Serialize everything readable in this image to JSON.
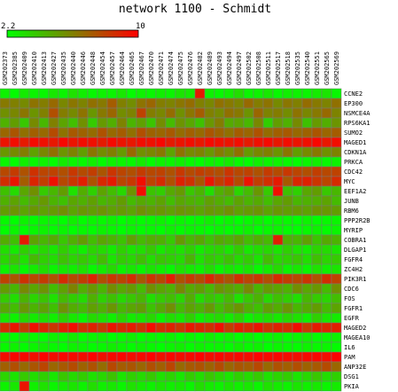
{
  "chart_data": {
    "type": "heatmap",
    "title": "network 1100 - Schmidt",
    "color_scale": {
      "min": 2.2,
      "max": 10,
      "min_label": "2.2",
      "max_label": "10",
      "low_color": "#00ff00",
      "mid_color": "#808000",
      "high_color": "#ff0000"
    },
    "columns": [
      "GSM202373",
      "GSM202385",
      "GSM202409",
      "GSM202410",
      "GSM202413",
      "GSM202427",
      "GSM202435",
      "GSM202440",
      "GSM202446",
      "GSM202448",
      "GSM202454",
      "GSM202457",
      "GSM202464",
      "GSM202465",
      "GSM202467",
      "GSM202470",
      "GSM202471",
      "GSM202474",
      "GSM202475",
      "GSM202476",
      "GSM202482",
      "GSM202489",
      "GSM202493",
      "GSM202494",
      "GSM202497",
      "GSM202502",
      "GSM202508",
      "GSM202511",
      "GSM202517",
      "GSM202518",
      "GSM202535",
      "GSM202540",
      "GSM202551",
      "GSM202565",
      "GSM202569"
    ],
    "rows": [
      "CCNE2",
      "EP300",
      "NSMCE4A",
      "RPS6KA1",
      "SUMO2",
      "MAGED1",
      "CDKN1A",
      "PRKCA",
      "CDC42",
      "MYC",
      "EEF1A2",
      "JUNB",
      "RBM6",
      "PPP2R2B",
      "MYRIP",
      "COBRA1",
      "DLGAP1",
      "FGFR4",
      "ZC4H2",
      "PIK3R1",
      "CDC6",
      "FOS",
      "FGFR1",
      "EGFR",
      "MAGED2",
      "MAGEA10",
      "IL6",
      "PAM",
      "ANP32E",
      "DSG1",
      "PKIA"
    ],
    "values": [
      [
        2.6,
        2.3,
        2.8,
        2.5,
        2.4,
        2.9,
        2.5,
        3.1,
        2.7,
        2.4,
        2.6,
        2.5,
        2.9,
        2.3,
        2.6,
        2.4,
        2.7,
        2.5,
        3.0,
        2.8,
        9.2,
        2.6,
        2.4,
        2.7,
        3.2,
        2.5,
        2.6,
        2.9,
        2.4,
        2.7,
        2.6,
        2.5,
        2.8,
        3.0,
        2.4
      ],
      [
        6.3,
        6.1,
        5.8,
        6.5,
        6.2,
        6.8,
        5.9,
        6.4,
        6.0,
        6.6,
        6.3,
        7.2,
        6.1,
        5.7,
        6.5,
        6.9,
        6.2,
        6.0,
        6.4,
        6.7,
        6.1,
        5.9,
        6.6,
        6.3,
        6.0,
        6.8,
        6.2,
        6.5,
        5.8,
        6.4,
        6.1,
        6.7,
        6.3,
        6.0,
        6.6
      ],
      [
        5.6,
        5.9,
        6.4,
        5.5,
        6.1,
        7.6,
        6.2,
        5.8,
        6.5,
        5.4,
        6.3,
        6.9,
        5.7,
        6.0,
        8.0,
        6.2,
        5.9,
        6.7,
        5.6,
        6.4,
        7.2,
        6.1,
        5.8,
        6.6,
        6.3,
        5.5,
        6.9,
        6.0,
        6.2,
        5.7,
        6.5,
        5.9,
        6.3,
        6.8,
        6.0
      ],
      [
        4.6,
        5.2,
        3.9,
        5.8,
        4.4,
        6.1,
        5.0,
        4.2,
        5.6,
        3.8,
        5.3,
        4.7,
        6.0,
        4.5,
        5.1,
        4.0,
        5.7,
        4.3,
        5.5,
        4.9,
        4.1,
        5.4,
        6.2,
        4.8,
        5.0,
        4.4,
        5.9,
        3.7,
        5.2,
        4.6,
        5.8,
        4.1,
        5.3,
        4.7,
        5.5
      ],
      [
        6.9,
        7.4,
        6.6,
        7.1,
        6.8,
        7.7,
        6.5,
        7.3,
        7.0,
        6.7,
        7.5,
        6.8,
        7.2,
        6.6,
        7.6,
        7.0,
        6.9,
        7.3,
        6.7,
        7.1,
        6.8,
        7.4,
        7.0,
        6.6,
        7.2,
        6.9,
        7.5,
        6.7,
        7.1,
        7.3,
        6.8,
        7.0,
        7.4,
        6.9,
        7.2
      ],
      [
        9.4,
        9.6,
        9.2,
        9.7,
        9.5,
        9.3,
        9.8,
        9.4,
        9.6,
        9.5,
        9.2,
        9.7,
        9.4,
        9.3,
        9.6,
        9.5,
        9.8,
        9.2,
        9.4,
        9.6,
        9.3,
        9.7,
        9.5,
        9.4,
        9.6,
        9.2,
        9.5,
        9.7,
        9.3,
        9.6,
        9.4,
        9.5,
        9.8,
        9.3,
        9.6
      ],
      [
        5.4,
        5.8,
        6.2,
        5.1,
        5.9,
        6.6,
        5.5,
        6.0,
        5.2,
        6.4,
        5.7,
        6.1,
        5.3,
        6.8,
        5.6,
        5.9,
        6.3,
        5.0,
        6.5,
        5.8,
        6.0,
        5.4,
        6.2,
        5.7,
        6.6,
        5.3,
        5.9,
        6.1,
        5.5,
        6.4,
        5.2,
        5.8,
        6.3,
        5.6,
        6.0
      ],
      [
        2.5,
        2.3,
        2.7,
        2.4,
        2.6,
        2.3,
        2.8,
        2.5,
        2.4,
        2.7,
        2.3,
        2.6,
        2.5,
        2.4,
        2.8,
        2.3,
        2.6,
        2.5,
        2.7,
        2.4,
        2.3,
        2.6,
        2.5,
        2.8,
        2.4,
        2.3,
        2.7,
        2.5,
        2.6,
        2.4,
        2.3,
        2.5,
        2.7,
        2.4,
        2.6
      ],
      [
        7.8,
        8.2,
        7.5,
        8.5,
        7.9,
        8.0,
        7.6,
        8.3,
        7.7,
        8.1,
        7.4,
        8.4,
        7.9,
        7.6,
        8.2,
        7.8,
        8.0,
        7.5,
        8.3,
        7.7,
        8.1,
        7.9,
        7.6,
        8.4,
        7.8,
        8.0,
        7.5,
        8.2,
        7.7,
        8.3,
        7.9,
        7.6,
        8.1,
        7.8,
        8.0
      ],
      [
        8.6,
        9.3,
        7.2,
        8.9,
        8.1,
        9.5,
        7.8,
        8.4,
        9.1,
        7.5,
        8.8,
        9.2,
        7.9,
        8.3,
        9.6,
        8.0,
        8.7,
        7.6,
        9.0,
        8.5,
        7.4,
        9.3,
        8.2,
        8.9,
        7.7,
        9.4,
        8.1,
        8.6,
        9.2,
        7.3,
        8.8,
        9.0,
        8.4,
        7.9,
        8.7
      ],
      [
        4.1,
        3.3,
        4.9,
        5.6,
        3.8,
        4.4,
        5.2,
        3.1,
        4.7,
        3.6,
        5.0,
        4.2,
        3.4,
        5.5,
        9.6,
        4.0,
        3.7,
        4.8,
        5.3,
        3.9,
        4.5,
        3.2,
        4.6,
        5.1,
        3.5,
        4.3,
        5.4,
        3.8,
        9.5,
        4.1,
        3.6,
        4.9,
        5.2,
        3.9,
        4.4
      ],
      [
        4.6,
        5.0,
        4.3,
        4.8,
        5.3,
        4.5,
        4.1,
        4.9,
        4.6,
        5.1,
        4.4,
        4.7,
        5.2,
        4.3,
        4.8,
        4.5,
        5.0,
        4.2,
        4.9,
        4.6,
        4.4,
        5.1,
        4.7,
        4.3,
        5.0,
        4.5,
        4.8,
        4.2,
        4.9,
        5.2,
        4.4,
        4.6,
        4.7,
        5.0,
        4.3
      ],
      [
        5.2,
        5.5,
        5.0,
        5.4,
        5.1,
        5.3,
        5.6,
        5.0,
        5.4,
        5.2,
        5.5,
        5.1,
        5.3,
        5.0,
        5.6,
        5.2,
        5.4,
        5.1,
        5.5,
        5.3,
        5.0,
        5.4,
        5.2,
        5.6,
        5.1,
        5.3,
        5.5,
        5.0,
        5.4,
        5.2,
        5.3,
        5.1,
        5.5,
        5.4,
        5.2
      ],
      [
        2.4,
        2.2,
        2.6,
        2.3,
        2.5,
        2.4,
        2.2,
        2.7,
        2.3,
        2.5,
        2.4,
        2.6,
        2.2,
        2.5,
        2.3,
        2.4,
        2.6,
        2.2,
        2.5,
        2.3,
        2.4,
        2.7,
        2.3,
        2.5,
        2.2,
        2.4,
        2.6,
        2.3,
        2.5,
        2.4,
        2.2,
        2.6,
        2.3,
        2.4,
        2.5
      ],
      [
        2.3,
        2.5,
        2.2,
        2.4,
        2.6,
        2.3,
        2.5,
        2.2,
        2.4,
        2.3,
        2.6,
        2.4,
        2.2,
        2.5,
        2.3,
        2.4,
        2.2,
        2.6,
        2.3,
        2.5,
        2.4,
        2.2,
        2.5,
        2.3,
        2.4,
        2.6,
        2.2,
        2.4,
        2.5,
        2.3,
        2.2,
        2.4,
        2.6,
        2.3,
        2.5
      ],
      [
        4.7,
        4.1,
        9.2,
        5.0,
        4.4,
        4.8,
        3.9,
        4.6,
        5.2,
        4.2,
        4.9,
        4.5,
        4.0,
        5.1,
        4.3,
        4.7,
        4.6,
        3.8,
        5.3,
        4.4,
        4.9,
        4.1,
        4.8,
        4.5,
        5.0,
        4.2,
        4.7,
        4.3,
        9.0,
        4.6,
        4.4,
        5.1,
        4.0,
        4.8,
        4.5
      ],
      [
        3.2,
        2.8,
        3.6,
        3.0,
        3.4,
        2.9,
        3.7,
        3.1,
        2.7,
        3.5,
        3.3,
        2.8,
        3.6,
        3.0,
        3.2,
        3.8,
        2.9,
        3.4,
        3.1,
        3.6,
        2.8,
        3.3,
        3.5,
        3.0,
        3.7,
        2.9,
        3.2,
        3.4,
        3.0,
        3.6,
        3.1,
        2.8,
        3.5,
        3.3,
        3.0
      ],
      [
        3.4,
        3.9,
        3.1,
        4.3,
        3.6,
        3.2,
        4.0,
        3.5,
        3.8,
        3.3,
        4.2,
        3.0,
        3.7,
        3.4,
        4.1,
        3.2,
        3.9,
        3.6,
        3.3,
        4.4,
        3.1,
        3.8,
        3.5,
        4.0,
        3.3,
        3.7,
        3.0,
        4.2,
        3.4,
        3.6,
        3.9,
        3.2,
        4.1,
        3.5,
        3.8
      ],
      [
        2.6,
        3.0,
        2.4,
        2.8,
        3.2,
        2.5,
        2.9,
        2.7,
        3.1,
        2.4,
        2.8,
        3.3,
        2.6,
        2.9,
        2.5,
        3.0,
        2.7,
        2.4,
        3.1,
        2.8,
        2.6,
        3.2,
        2.5,
        2.9,
        2.7,
        3.0,
        2.4,
        2.8,
        3.3,
        2.6,
        2.9,
        2.5,
        3.1,
        2.7,
        3.0
      ],
      [
        8.0,
        7.4,
        8.5,
        7.8,
        8.2,
        7.5,
        8.7,
        7.7,
        8.1,
        8.9,
        7.6,
        8.3,
        7.9,
        8.6,
        7.3,
        8.4,
        7.8,
        9.1,
        7.5,
        8.2,
        7.7,
        8.8,
        8.0,
        7.4,
        8.5,
        7.9,
        8.3,
        7.6,
        8.7,
        8.1,
        7.8,
        8.4,
        7.5,
        8.6,
        8.0
      ],
      [
        5.2,
        4.4,
        5.8,
        4.9,
        5.5,
        4.2,
        5.1,
        6.0,
        4.7,
        5.4,
        4.5,
        5.7,
        4.9,
        5.3,
        4.3,
        5.6,
        5.0,
        4.6,
        5.9,
        4.8,
        5.2,
        4.4,
        5.5,
        5.1,
        4.7,
        5.8,
        4.5,
        5.3,
        5.0,
        4.6,
        5.7,
        4.9,
        5.4,
        4.3,
        5.6
      ],
      [
        3.8,
        3.2,
        4.5,
        3.5,
        4.0,
        3.1,
        4.3,
        3.7,
        3.3,
        4.6,
        3.6,
        4.1,
        3.4,
        3.9,
        4.4,
        3.2,
        3.8,
        4.2,
        3.5,
        4.7,
        3.3,
        4.0,
        3.6,
        4.3,
        3.1,
        3.9,
        4.5,
        3.4,
        4.1,
        3.7,
        3.2,
        4.4,
        3.8,
        3.5,
        4.2
      ],
      [
        4.8,
        4.2,
        5.3,
        4.5,
        5.0,
        4.1,
        5.5,
        4.7,
        4.3,
        5.1,
        4.6,
        5.4,
        4.4,
        4.9,
        5.2,
        4.0,
        4.8,
        5.6,
        4.3,
        5.0,
        4.5,
        5.3,
        4.2,
        4.9,
        5.5,
        4.6,
        4.1,
        5.1,
        4.7,
        5.4,
        4.4,
        4.8,
        5.2,
        4.3,
        5.0
      ],
      [
        3.0,
        2.6,
        3.4,
        2.8,
        3.2,
        2.7,
        3.6,
        2.9,
        2.5,
        3.3,
        3.1,
        2.7,
        3.5,
        2.8,
        3.0,
        3.4,
        2.6,
        3.2,
        2.9,
        3.6,
        2.7,
        3.1,
        3.3,
        2.8,
        3.5,
        2.6,
        3.0,
        3.2,
        2.9,
        3.4,
        3.1,
        2.7,
        3.6,
        3.0,
        2.8
      ],
      [
        8.7,
        9.3,
        8.2,
        9.5,
        8.9,
        8.4,
        9.1,
        9.6,
        8.6,
        9.0,
        8.3,
        9.4,
        8.8,
        9.2,
        8.5,
        9.7,
        8.7,
        9.0,
        8.4,
        9.3,
        8.9,
        8.6,
        9.5,
        8.2,
        9.1,
        8.8,
        9.4,
        8.5,
        9.0,
        8.7,
        9.6,
        8.3,
        9.2,
        8.9,
        9.1
      ],
      [
        2.5,
        2.3,
        2.7,
        2.4,
        2.2,
        2.6,
        2.4,
        2.8,
        2.3,
        2.5,
        2.6,
        2.2,
        2.4,
        2.7,
        2.3,
        2.5,
        2.4,
        2.6,
        2.2,
        2.5,
        2.3,
        2.7,
        2.4,
        2.6,
        2.3,
        2.5,
        2.2,
        2.4,
        2.6,
        2.3,
        2.5,
        2.7,
        2.3,
        2.4,
        2.6
      ],
      [
        2.4,
        2.6,
        2.3,
        2.5,
        2.7,
        2.4,
        2.2,
        2.6,
        2.5,
        2.3,
        2.4,
        2.7,
        2.5,
        2.3,
        2.6,
        2.4,
        2.2,
        2.5,
        2.7,
        2.3,
        2.6,
        2.4,
        2.5,
        2.3,
        2.7,
        2.4,
        2.6,
        2.2,
        2.5,
        2.4,
        2.3,
        2.6,
        2.4,
        2.5,
        2.3
      ],
      [
        9.6,
        9.8,
        9.7,
        9.5,
        9.9,
        9.6,
        9.8,
        9.7,
        9.6,
        9.9,
        9.5,
        9.7,
        9.8,
        9.6,
        9.7,
        9.9,
        9.5,
        9.8,
        9.6,
        9.7,
        9.9,
        9.6,
        9.8,
        9.5,
        9.7,
        9.6,
        9.9,
        9.7,
        9.8,
        9.6,
        9.5,
        9.7,
        9.8,
        9.6,
        9.9
      ],
      [
        7.1,
        7.6,
        6.8,
        7.4,
        7.9,
        6.9,
        7.3,
        7.7,
        7.0,
        7.5,
        6.7,
        7.8,
        7.2,
        7.4,
        6.9,
        7.6,
        7.1,
        7.9,
        6.8,
        7.3,
        7.5,
        7.0,
        7.7,
        6.9,
        7.4,
        7.2,
        7.8,
        6.8,
        7.5,
        7.1,
        7.6,
        7.0,
        7.3,
        7.7,
        6.9
      ],
      [
        3.5,
        3.0,
        3.8,
        3.2,
        3.6,
        2.9,
        3.9,
        3.3,
        3.7,
        3.1,
        3.4,
        4.0,
        3.0,
        3.6,
        3.3,
        3.8,
        3.1,
        3.5,
        2.9,
        3.7,
        3.2,
        3.9,
        3.4,
        3.0,
        3.6,
        3.3,
        3.8,
        3.1,
        3.5,
        3.7,
        3.0,
        3.4,
        3.9,
        3.2,
        3.6
      ],
      [
        2.6,
        2.9,
        9.4,
        2.7,
        3.1,
        2.5,
        2.8,
        3.0,
        2.6,
        3.2,
        2.7,
        2.9,
        2.5,
        3.1,
        2.8,
        2.6,
        3.0,
        2.7,
        2.9,
        2.5,
        3.2,
        2.8,
        2.6,
        3.0,
        2.7,
        2.9,
        2.5,
        3.1,
        2.8,
        2.6,
        3.0,
        2.7,
        2.9,
        2.5,
        2.8
      ]
    ]
  }
}
